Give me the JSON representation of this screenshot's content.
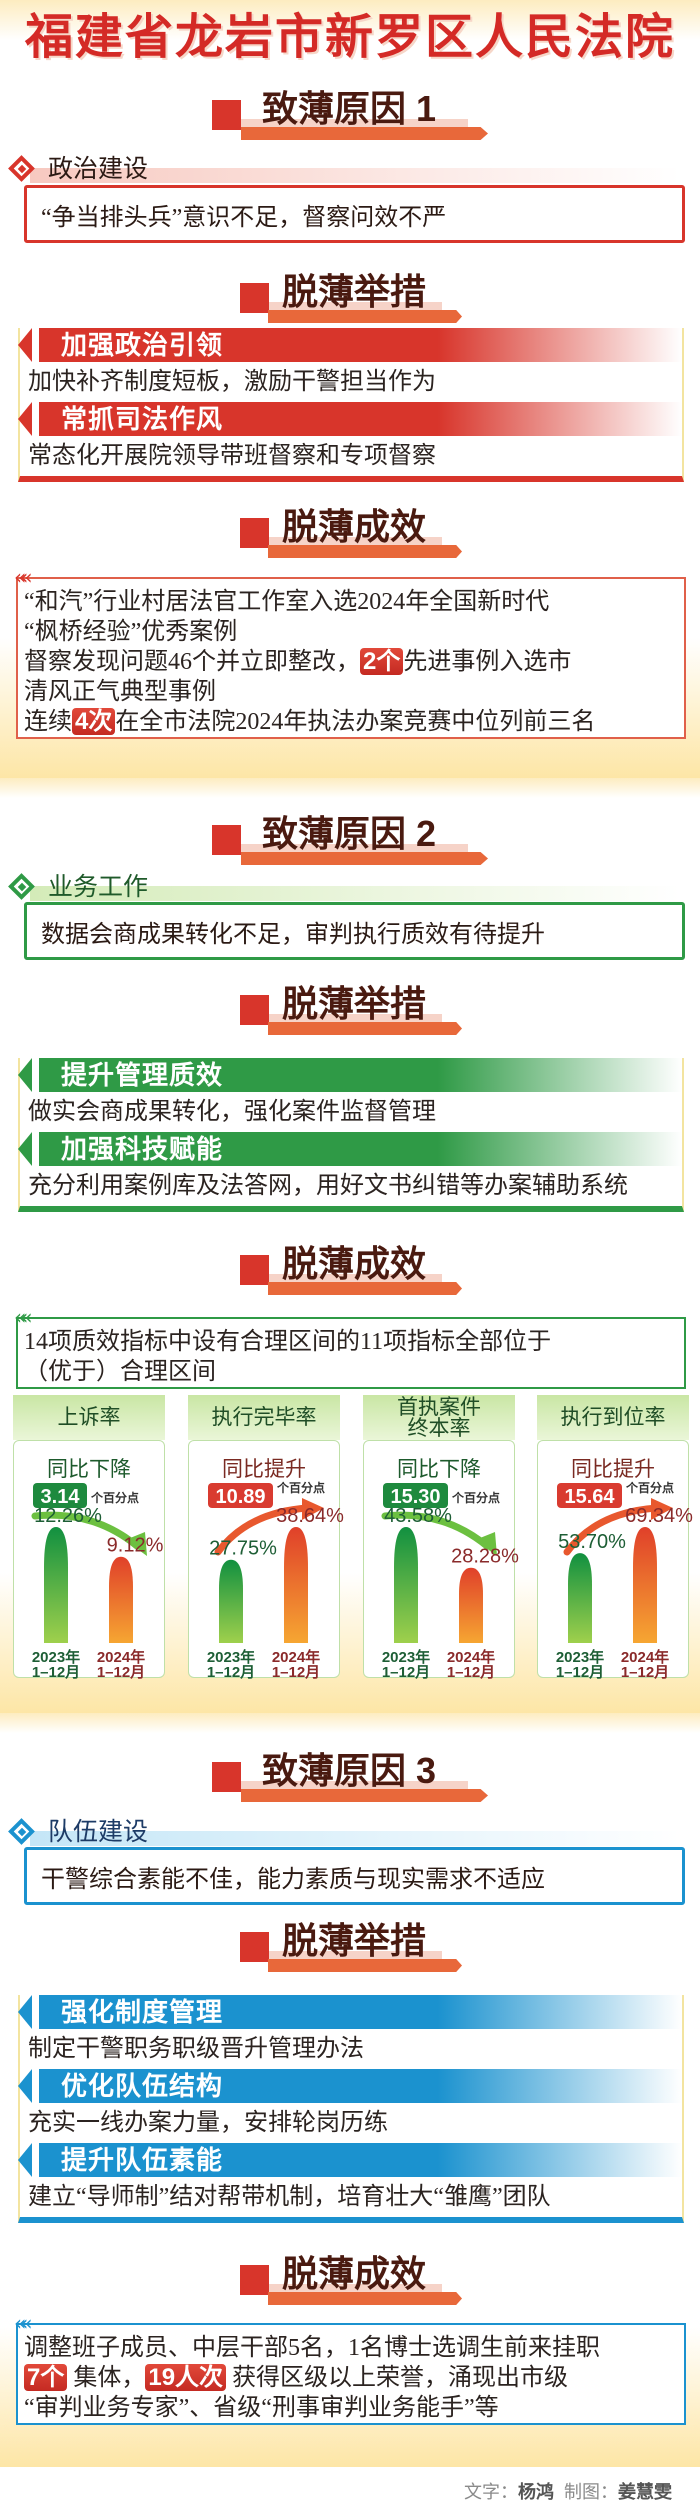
{
  "title": "福建省龙岩市新罗区人民法院",
  "sections": [
    {
      "theme_color": "#d8352b",
      "category_text_color": "#2b1a14",
      "band_color": "#f7c9c0",
      "reason_title": "致薄原因 1",
      "category": "政治建设",
      "problem": "“争当排头兵”意识不足，督察问效不严",
      "measures_title": "脱薄举措",
      "measures": [
        {
          "heading": "加强政治引领",
          "text": "加快补齐制度短板，激励干警担当作为"
        },
        {
          "heading": "常抓司法作风",
          "text": "常态化开展院领导带班督察和专项督察"
        }
      ],
      "results_title": "脱薄成效",
      "results": [
        [
          {
            "t": "“和汽”行业村居法官工作室入选2024年全国新时代"
          }
        ],
        [
          {
            "t": "“枫桥经验”优秀案例"
          }
        ],
        [
          {
            "t": "督察发现问题46个并立即整改，"
          },
          {
            "t": "2个",
            "hl": true
          },
          {
            "t": "先进事例入选市"
          }
        ],
        [
          {
            "t": "清风正气典型事例"
          }
        ],
        [
          {
            "t": "连续"
          },
          {
            "t": "4次",
            "hl": true
          },
          {
            "t": "在全市法院2024年执法办案竞赛中位列前三名"
          }
        ]
      ]
    },
    {
      "theme_color": "#2f9a46",
      "category_text_color": "#1f5a2a",
      "band_color": "#d4ebb8",
      "reason_title": "致薄原因 2",
      "category": "业务工作",
      "problem": "数据会商成果转化不足，审判执行质效有待提升",
      "measures_title": "脱薄举措",
      "measures": [
        {
          "heading": "提升管理质效",
          "text": "做实会商成果转化，强化案件监督管理"
        },
        {
          "heading": "加强科技赋能",
          "text": "充分利用案例库及法答网，用好文书纠错等办案辅助系统"
        }
      ],
      "results_title": "脱薄成效",
      "results": [
        [
          {
            "t": "14项质效指标中设有合理区间的11项指标全部位于"
          }
        ],
        [
          {
            "t": "（优于）合理区间"
          }
        ]
      ]
    },
    {
      "theme_color": "#1b92cf",
      "category_text_color": "#1d3b66",
      "band_color": "#c4e6f7",
      "reason_title": "致薄原因 3",
      "category": "队伍建设",
      "problem": "干警综合素能不佳，能力素质与现实需求不适应",
      "measures_title": "脱薄举措",
      "measures": [
        {
          "heading": "强化制度管理",
          "text": "制定干警职务职级晋升管理办法"
        },
        {
          "heading": "优化队伍结构",
          "text": "充实一线办案力量，安排轮岗历练"
        },
        {
          "heading": "提升队伍素能",
          "text": "建立“导师制”结对帮带机制，培育壮大“雏鹰”团队"
        }
      ],
      "results_title": "脱薄成效",
      "results": [
        [
          {
            "t": "调整班子成员、中层干部5名，1名博士选调生前来挂职"
          }
        ],
        [
          {
            "t": "7个",
            "hl": true
          },
          {
            "t": " 集体，"
          },
          {
            "t": "19人次",
            "hl": true
          },
          {
            "t": " 获得区级以上荣誉，涌现出市级"
          }
        ],
        [
          {
            "t": "“审判业务专家”、省级“刑事审判业务能手”等"
          }
        ]
      ]
    }
  ],
  "chart_data": {
    "type": "bar",
    "year_labels": [
      "2023年",
      "2024年"
    ],
    "period_label": "1–12月",
    "colors": {
      "2023": "#119040",
      "2024": "#e0402a",
      "decrease": "#1e8a3e",
      "increase": "#d93b30"
    },
    "panels": [
      {
        "title_lines": [
          "上诉率"
        ],
        "change_label": "同比下降",
        "direction": "down",
        "change_value": "3.14",
        "change_unit": "个百分点",
        "values": [
          12.26,
          9.12
        ],
        "value_labels": [
          "12.26%",
          "9.12%"
        ]
      },
      {
        "title_lines": [
          "执行完毕率"
        ],
        "change_label": "同比提升",
        "direction": "up",
        "change_value": "10.89",
        "change_unit": "个百分点",
        "values": [
          27.75,
          38.64
        ],
        "value_labels": [
          "27.75%",
          "38.64%"
        ]
      },
      {
        "title_lines": [
          "首执案件",
          "终本率"
        ],
        "change_label": "同比下降",
        "direction": "down",
        "change_value": "15.30",
        "change_unit": "个百分点",
        "values": [
          43.58,
          28.28
        ],
        "value_labels": [
          "43.58%",
          "28.28%"
        ]
      },
      {
        "title_lines": [
          "执行到位率"
        ],
        "change_label": "同比提升",
        "direction": "up",
        "change_value": "15.64",
        "change_unit": "个百分点",
        "values": [
          53.7,
          69.34
        ],
        "value_labels": [
          "53.70%",
          "69.34%"
        ]
      }
    ]
  },
  "credits": {
    "text_label": "文字：",
    "text_author": "杨鸿",
    "design_label": "制图：",
    "design_author": "姜慧雯"
  }
}
